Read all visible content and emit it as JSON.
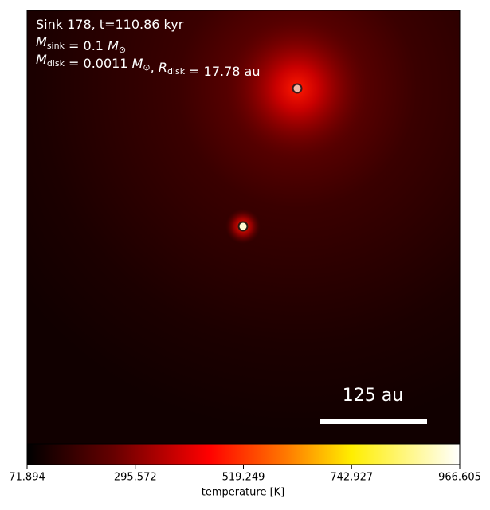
{
  "chart_data": {
    "type": "heatmap",
    "annotations": [
      [
        {
          "text": "Sink 178, t=110.86 kyr"
        }
      ],
      [
        {
          "text": "M"
        },
        {
          "sub": "sink"
        },
        {
          "text": " = 0.1 "
        },
        {
          "text": "M"
        },
        {
          "sub": "⊙"
        }
      ],
      [
        {
          "text": "M"
        },
        {
          "sub": "disk"
        },
        {
          "text": " = 0.0011 "
        },
        {
          "text": "M"
        },
        {
          "sub": "⊙"
        },
        {
          "text": ", "
        },
        {
          "text": "R"
        },
        {
          "sub": "disk"
        },
        {
          "text": " = 17.78 au"
        }
      ]
    ],
    "scale_bar_label": "125 au",
    "colorbar": {
      "label": "temperature [K]",
      "lim": [
        71.894,
        966.605
      ],
      "ticks": [
        71.894,
        295.572,
        519.249,
        742.927,
        966.605
      ]
    }
  }
}
